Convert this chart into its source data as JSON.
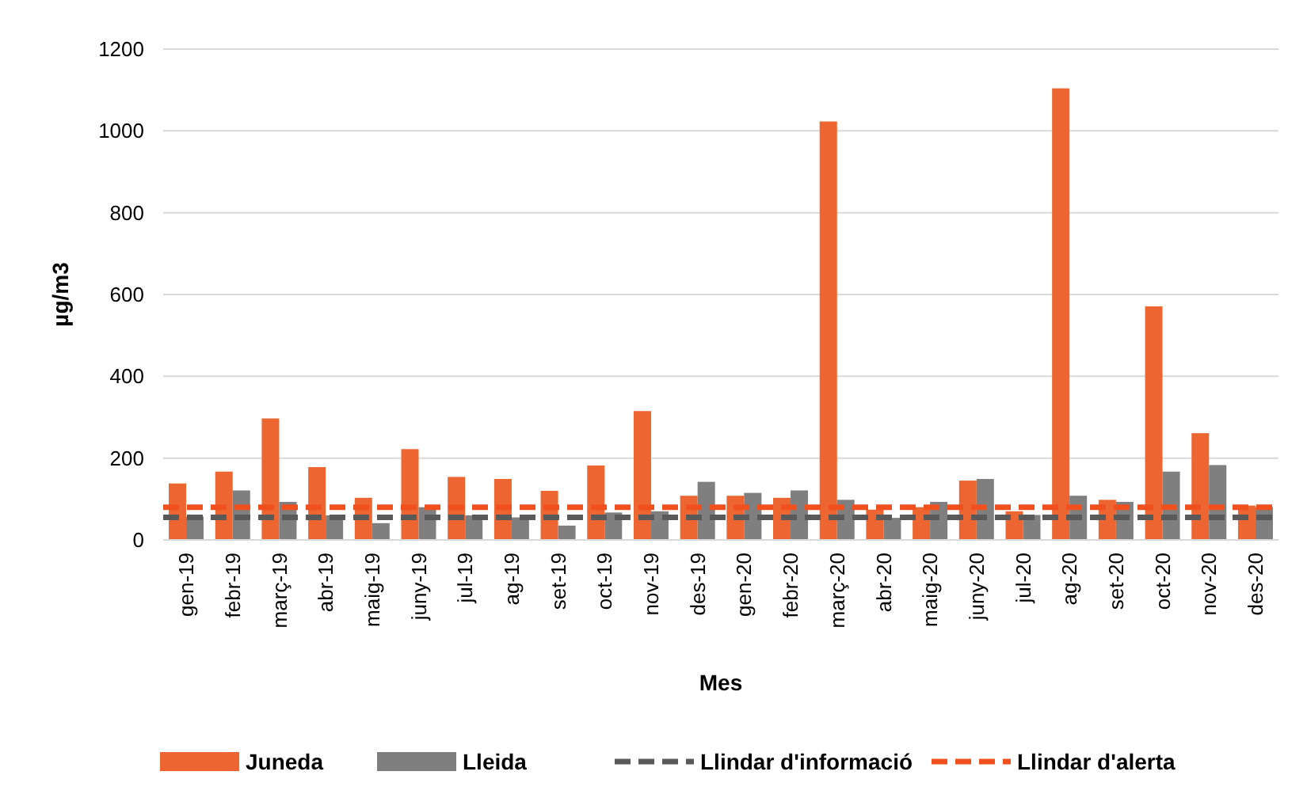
{
  "chart_data": {
    "type": "bar",
    "xlabel": "Mes",
    "ylabel": "µg/m3",
    "categories": [
      "gen-19",
      "febr-19",
      "març-19",
      "abr-19",
      "maig-19",
      "juny-19",
      "jul-19",
      "ag-19",
      "set-19",
      "oct-19",
      "nov-19",
      "des-19",
      "gen-20",
      "febr-20",
      "març-20",
      "abr-20",
      "maig-20",
      "juny-20",
      "jul-20",
      "ag-20",
      "set-20",
      "oct-20",
      "nov-20",
      "des-20"
    ],
    "series": [
      {
        "name": "Juneda",
        "color": "#ed6530",
        "values": [
          138,
          167,
          297,
          178,
          103,
          222,
          154,
          149,
          120,
          182,
          315,
          108,
          108,
          103,
          1023,
          74,
          80,
          145,
          70,
          1104,
          98,
          571,
          261,
          84
        ]
      },
      {
        "name": "Lleida",
        "color": "#7f7f7f",
        "values": [
          57,
          121,
          93,
          60,
          41,
          80,
          60,
          55,
          35,
          67,
          70,
          142,
          115,
          121,
          98,
          54,
          93,
          149,
          61,
          108,
          93,
          167,
          183,
          80
        ]
      }
    ],
    "ref_lines": [
      {
        "axis": "y",
        "value": 55,
        "label": "Llindar d'informació",
        "color": "#595959",
        "line_style": "dashed"
      },
      {
        "axis": "y",
        "value": 80,
        "label": "Llindar d'alerta",
        "color": "#f0501e",
        "line_style": "dashed"
      }
    ],
    "ylim": [
      0,
      1200
    ],
    "yticks": [
      0,
      200,
      400,
      600,
      800,
      1000,
      1200
    ],
    "grid": "y",
    "legend": "bottom"
  }
}
